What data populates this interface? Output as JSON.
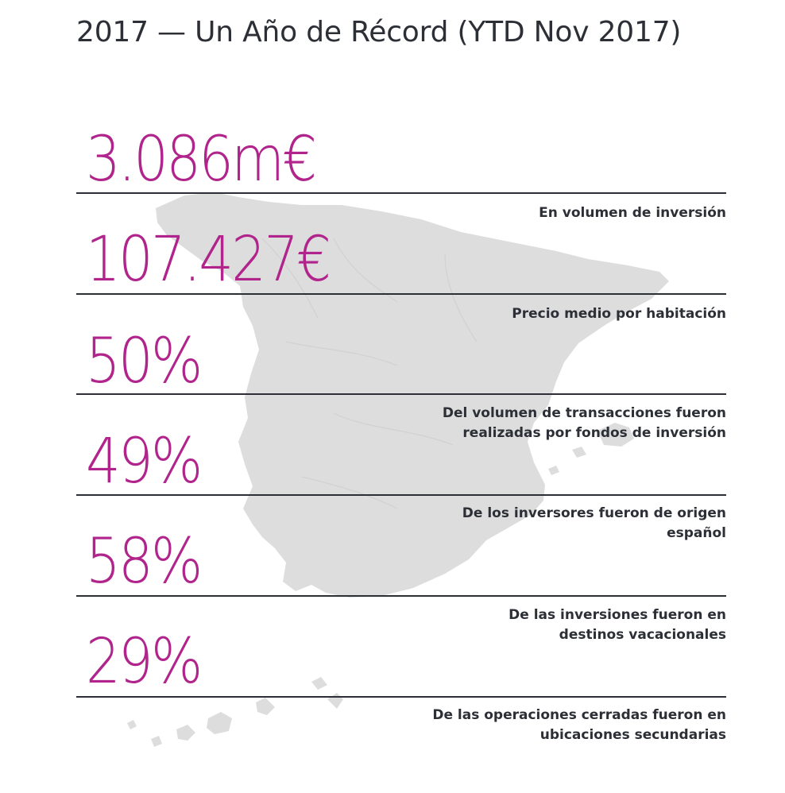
{
  "title": "2017 — Un Año de Récord (YTD Nov 2017)",
  "colors": {
    "accent": "#b0248c",
    "text": "#2c2f36",
    "map": "#dcdddc"
  },
  "map_icon": "spain-map-silhouette",
  "stats": [
    {
      "value": "3.086m€",
      "description": [
        "En volumen de inversión"
      ]
    },
    {
      "value": "107.427€",
      "description": [
        "Precio medio por habitación"
      ]
    },
    {
      "value": "50%",
      "description": [
        "Del volumen de transacciones fueron",
        "realizadas por fondos de inversión"
      ]
    },
    {
      "value": "49%",
      "description": [
        "De los inversores fueron de origen",
        "español"
      ]
    },
    {
      "value": "58%",
      "description": [
        "De las inversiones fueron en",
        "destinos vacacionales"
      ]
    },
    {
      "value": "29%",
      "description": [
        "De las operaciones cerradas fueron en",
        "ubicaciones secundarias"
      ]
    }
  ]
}
